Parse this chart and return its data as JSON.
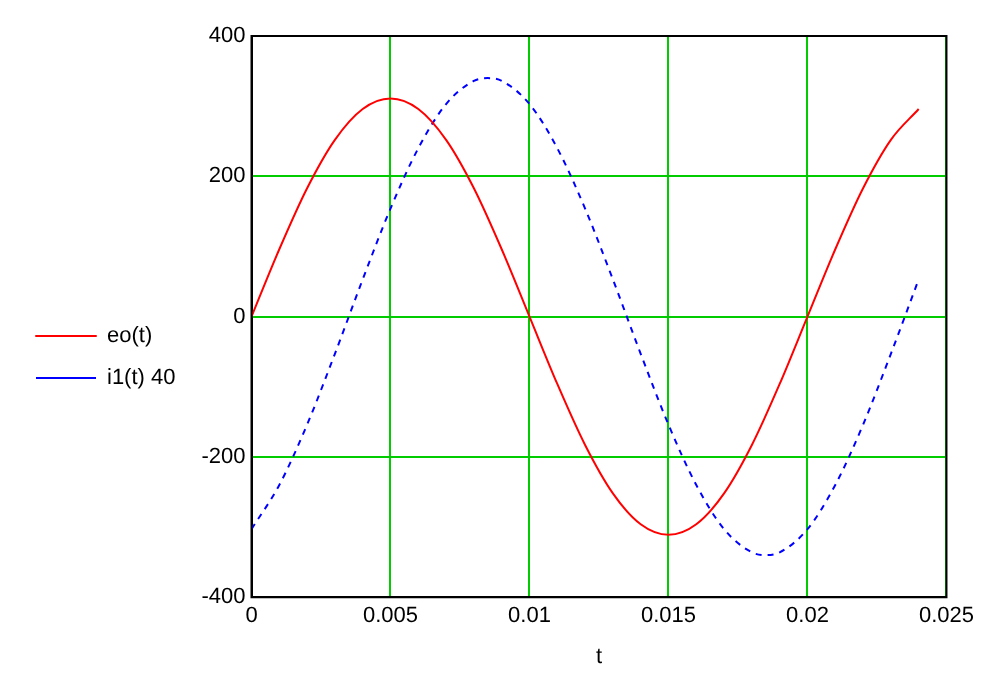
{
  "chart_data": {
    "type": "line",
    "xlabel": "t",
    "x": [
      0,
      0.001,
      0.002,
      0.003,
      0.004,
      0.005,
      0.006,
      0.007,
      0.008,
      0.009,
      0.01,
      0.011,
      0.012,
      0.013,
      0.014,
      0.015,
      0.016,
      0.017,
      0.018,
      0.019,
      0.02,
      0.021,
      0.022,
      0.023,
      0.024
    ],
    "series": [
      {
        "name": "eo(t)",
        "color": "#ff0000",
        "line_style": "solid",
        "values": [
          0,
          96,
          183,
          252,
          296,
          311,
          296,
          252,
          183,
          96,
          0,
          -96,
          -183,
          -252,
          -296,
          -311,
          -296,
          -252,
          -183,
          -96,
          0,
          96,
          183,
          252,
          296
        ]
      },
      {
        "name": "i1(t) 40",
        "color": "#0000ff",
        "line_style": "dashed",
        "x": [
          0,
          0.001,
          0.002,
          0.003,
          0.004,
          0.005,
          0.006,
          0.007,
          0.008,
          0.0085,
          0.009,
          0.01,
          0.011,
          0.012,
          0.013,
          0.014,
          0.015,
          0.016,
          0.017,
          0.018,
          0.0185,
          0.019,
          0.02,
          0.021,
          0.022,
          0.023,
          0.024
        ],
        "values": [
          -303,
          -240,
          -154,
          -53,
          53,
          154,
          240,
          303,
          336,
          340,
          336,
          303,
          240,
          154,
          53,
          -53,
          -154,
          -240,
          -303,
          -336,
          -340,
          -336,
          -303,
          -240,
          -154,
          -53,
          53
        ]
      }
    ],
    "xlim": [
      0,
      0.025
    ],
    "xticks": [
      0,
      0.005,
      0.01,
      0.015,
      0.02,
      0.025
    ],
    "ylim": [
      -400,
      400
    ],
    "yticks": [
      -400,
      -200,
      0,
      200,
      400
    ],
    "grid": true,
    "legend": "left",
    "marker": "none"
  }
}
